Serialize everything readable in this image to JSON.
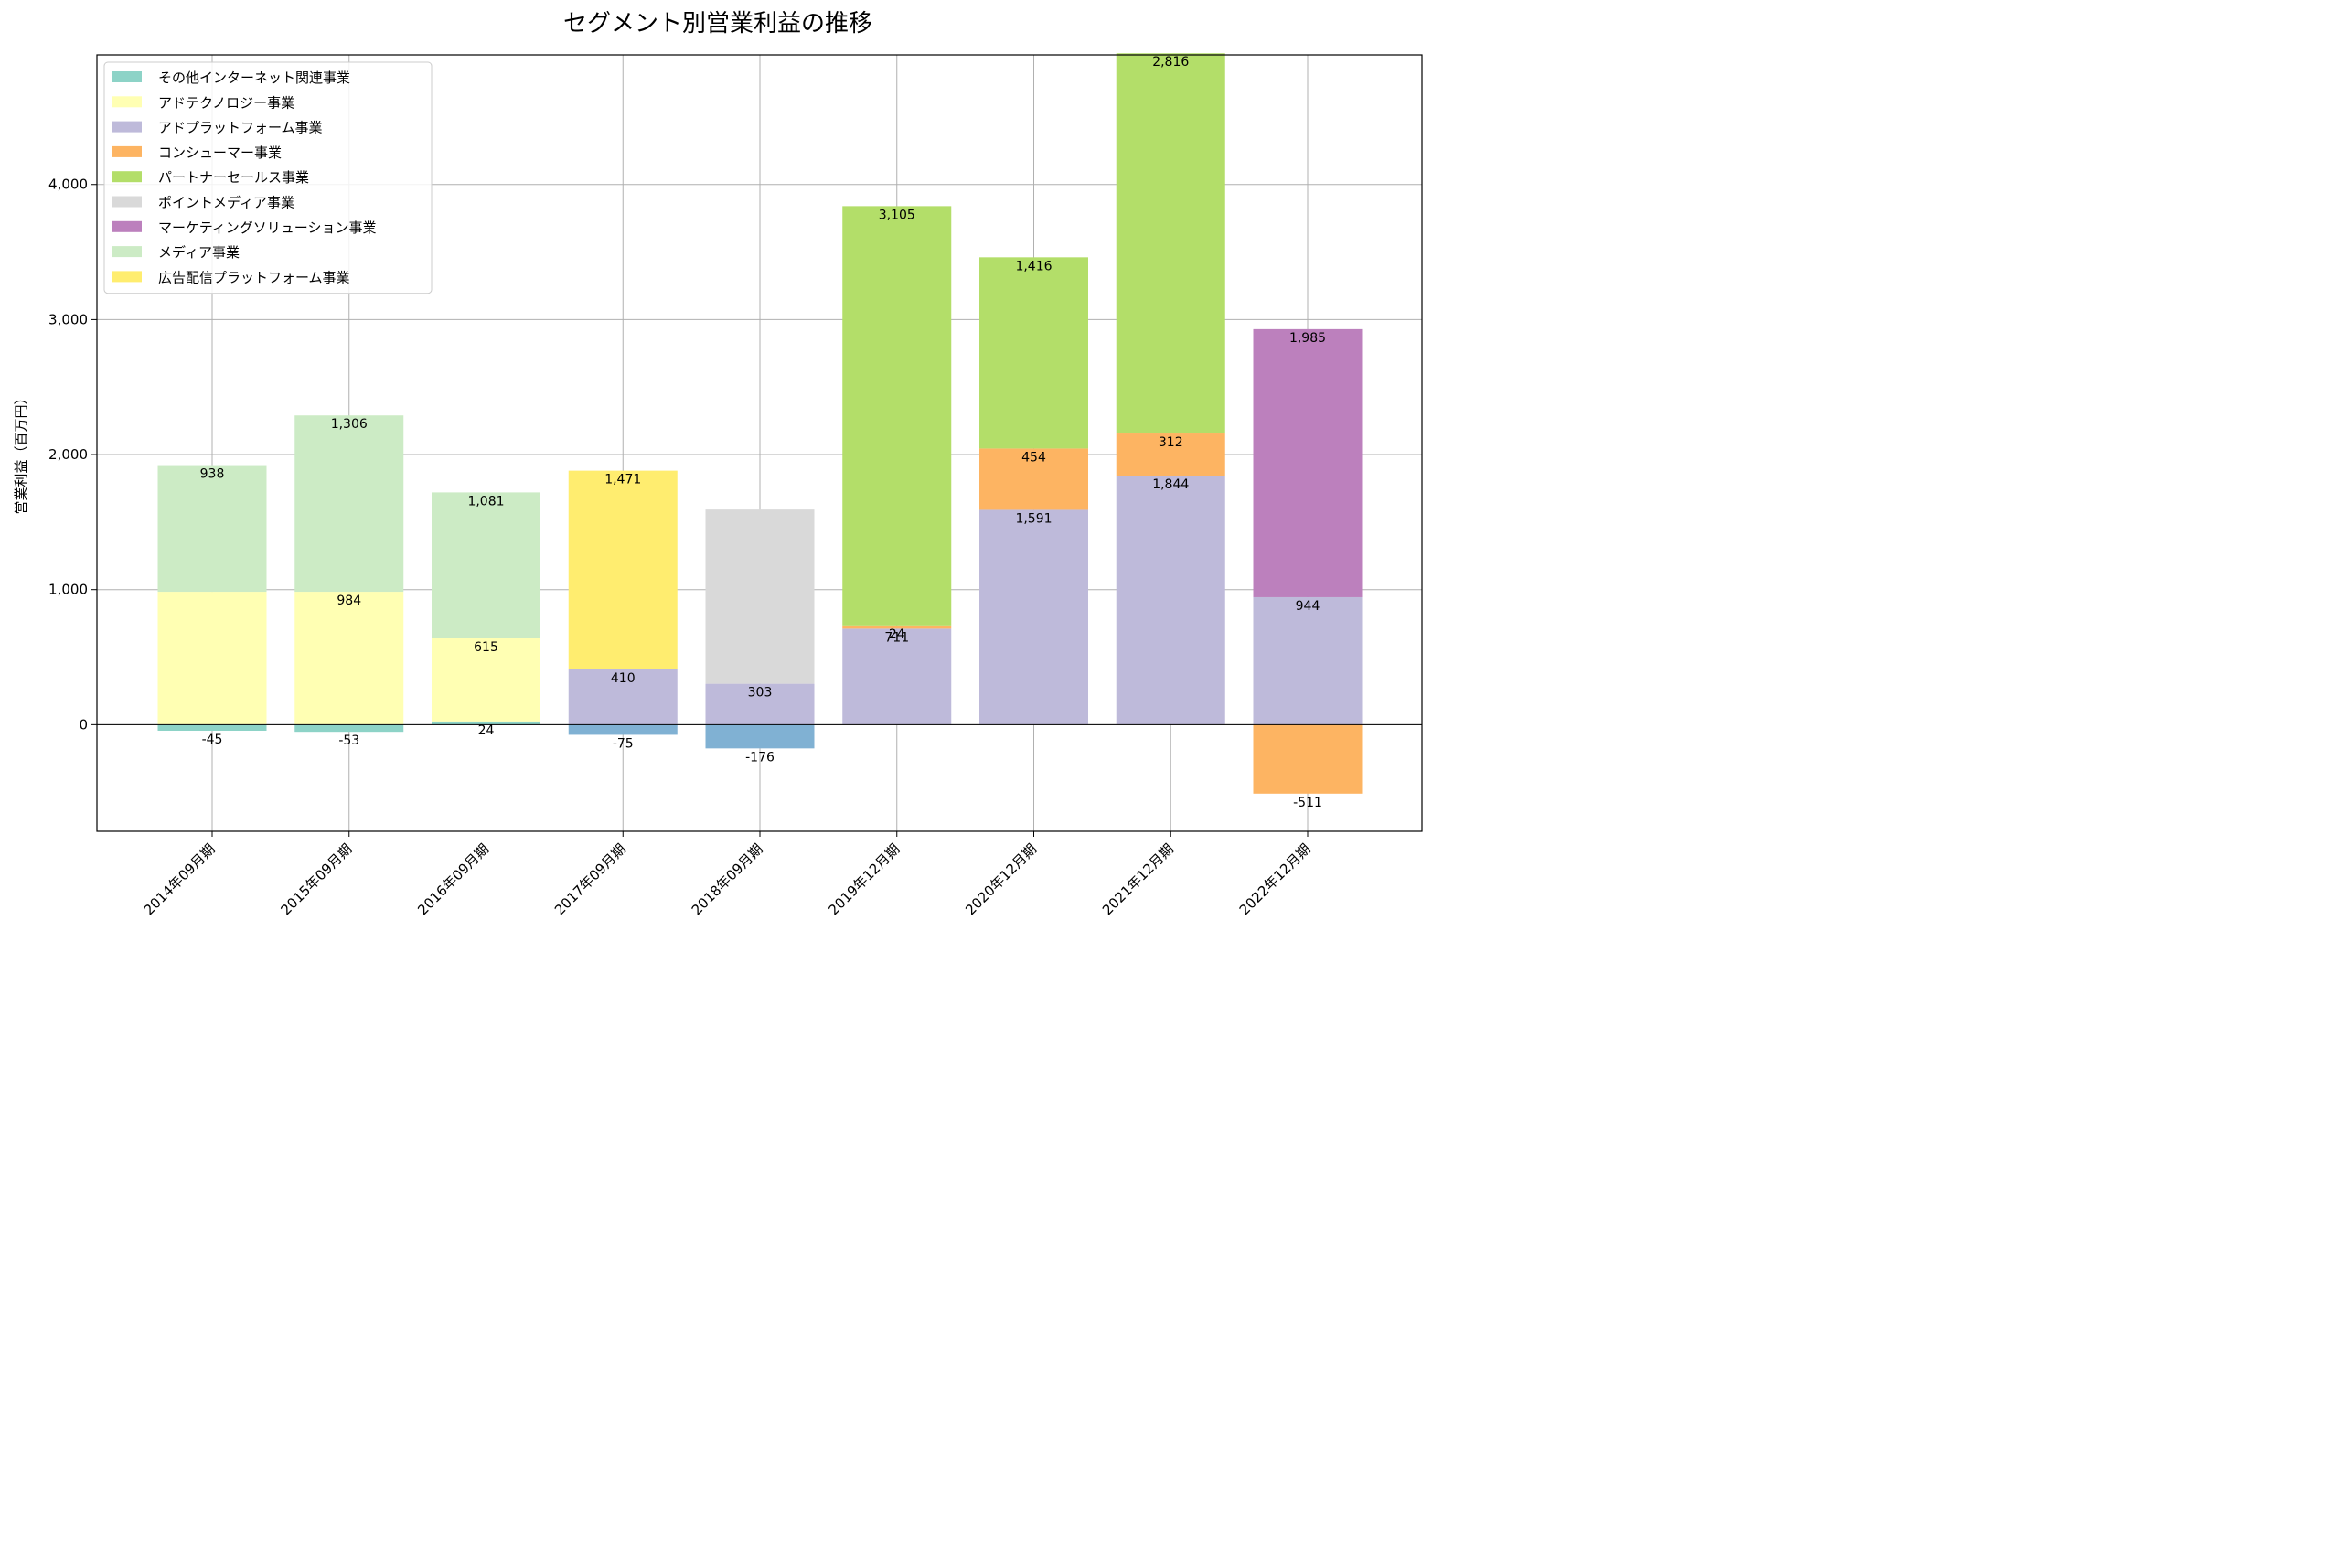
{
  "chart_data": {
    "type": "bar",
    "stacked": true,
    "title": "セグメント別営業利益の推移",
    "xlabel": "",
    "ylabel": "営業利益（百万円）",
    "ylim": [
      -790,
      4960
    ],
    "yticks": [
      0,
      1000,
      2000,
      3000,
      4000
    ],
    "ytick_labels": [
      "0",
      "1,000",
      "2,000",
      "3,000",
      "4,000"
    ],
    "grid": true,
    "legend_position": "top-left",
    "categories": [
      "2014年09月期",
      "2015年09月期",
      "2016年09月期",
      "2017年09月期",
      "2018年09月期",
      "2019年12月期",
      "2020年12月期",
      "2021年12月期",
      "2022年12月期"
    ],
    "legend": [
      {
        "name": "その他インターネット関連事業",
        "color": "#8dd3c7"
      },
      {
        "name": "アドテクノロジー事業",
        "color": "#ffffb3"
      },
      {
        "name": "アドプラットフォーム事業",
        "color": "#bebada"
      },
      {
        "name": "コンシューマー事業",
        "color": "#fdb462"
      },
      {
        "name": "パートナーセールス事業",
        "color": "#b3de69"
      },
      {
        "name": "ポイントメディア事業",
        "color": "#d9d9d9"
      },
      {
        "name": "マーケティングソリューション事業",
        "color": "#bc80bd"
      },
      {
        "name": "メディア事業",
        "color": "#ccebc5"
      },
      {
        "name": "広告配信プラットフォーム事業",
        "color": "#ffed6f"
      }
    ],
    "series": [
      {
        "color": "#8dd3c7",
        "values": [
          -45,
          -53,
          24,
          null,
          null,
          null,
          null,
          null,
          null
        ],
        "labels": [
          "-45",
          "-53",
          "24",
          "",
          "",
          "",
          "",
          "",
          ""
        ]
      },
      {
        "color": "#80b1d3",
        "values": [
          null,
          null,
          null,
          -75,
          -176,
          null,
          null,
          null,
          null
        ],
        "labels": [
          "",
          "",
          "",
          "-75",
          "-176",
          "",
          "",
          "",
          ""
        ]
      },
      {
        "color": "#ffffb3",
        "values": [
          984,
          984,
          615,
          null,
          null,
          null,
          null,
          null,
          null
        ],
        "labels": [
          "",
          "984",
          "615",
          "",
          "",
          "",
          "",
          "",
          ""
        ]
      },
      {
        "color": "#bebada",
        "values": [
          null,
          null,
          null,
          410,
          303,
          711,
          1591,
          1844,
          944
        ],
        "labels": [
          "",
          "",
          "",
          "410",
          "303",
          "711",
          "1,591",
          "1,844",
          "944"
        ]
      },
      {
        "color": "#fdb462",
        "values": [
          null,
          null,
          null,
          null,
          null,
          24,
          454,
          312,
          -511
        ],
        "labels": [
          "",
          "",
          "",
          "",
          "",
          "24",
          "454",
          "312",
          "-511"
        ]
      },
      {
        "color": "#b3de69",
        "values": [
          null,
          null,
          null,
          null,
          null,
          3105,
          1416,
          2816,
          null
        ],
        "labels": [
          "",
          "",
          "",
          "",
          "",
          "3,105",
          "1,416",
          "2,816",
          ""
        ]
      },
      {
        "color": "#d9d9d9",
        "values": [
          null,
          null,
          null,
          null,
          1290,
          null,
          null,
          null,
          null
        ],
        "labels": [
          "",
          "",
          "",
          "",
          "",
          "",
          "",
          "",
          ""
        ]
      },
      {
        "color": "#bc80bd",
        "values": [
          null,
          null,
          null,
          null,
          null,
          null,
          null,
          null,
          1985
        ],
        "labels": [
          "",
          "",
          "",
          "",
          "",
          "",
          "",
          "",
          "1,985"
        ]
      },
      {
        "color": "#ccebc5",
        "values": [
          938,
          1306,
          1081,
          null,
          null,
          null,
          null,
          null,
          null
        ],
        "labels": [
          "938",
          "1,306",
          "1,081",
          "",
          "",
          "",
          "",
          "",
          ""
        ]
      },
      {
        "color": "#ffed6f",
        "values": [
          null,
          null,
          null,
          1471,
          null,
          null,
          null,
          null,
          null
        ],
        "labels": [
          "",
          "",
          "",
          "1,471",
          "",
          "",
          "",
          "",
          ""
        ]
      }
    ]
  }
}
